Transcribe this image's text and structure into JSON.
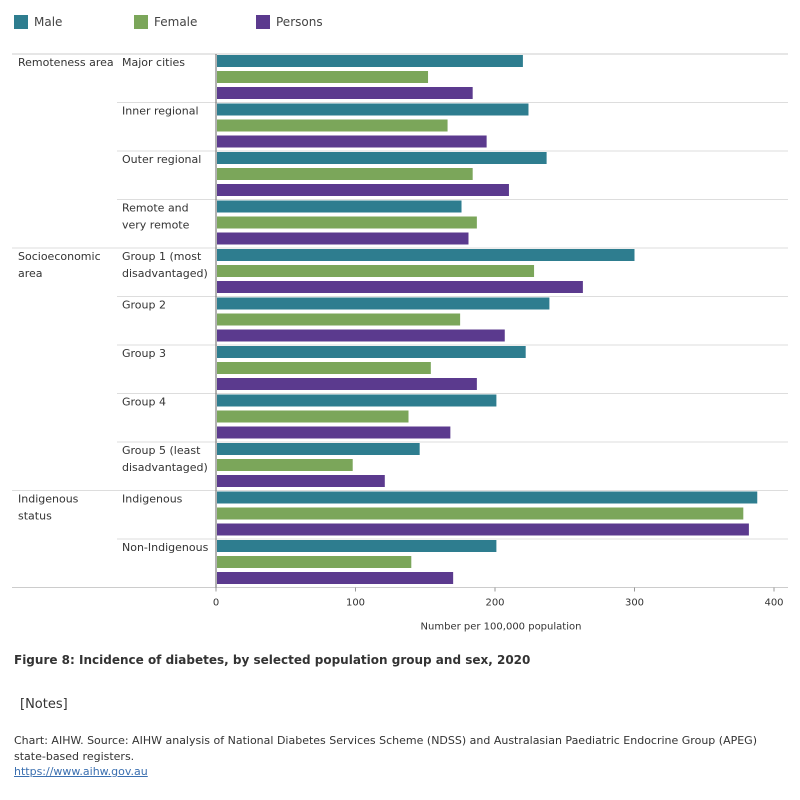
{
  "legend": {
    "male": "Male",
    "female": "Female",
    "persons": "Persons"
  },
  "colors": {
    "male": "#2e7d8f",
    "female": "#7ba65a",
    "persons": "#5b3a8e"
  },
  "chart_data": {
    "type": "bar",
    "orientation": "horizontal",
    "title": "Figure 8: Incidence of diabetes, by selected population group and sex, 2020",
    "xlabel": "Number per 100,000 population",
    "ylabel": "",
    "xlim": [
      0,
      400
    ],
    "x_ticks": [
      0,
      100,
      200,
      300,
      400
    ],
    "series_names": [
      "Male",
      "Female",
      "Persons"
    ],
    "groups": [
      {
        "label_lines": [
          "Remoteness area"
        ],
        "categories": [
          {
            "label_lines": [
              "Major cities"
            ],
            "values": [
              220,
              152,
              184
            ]
          },
          {
            "label_lines": [
              "Inner regional"
            ],
            "values": [
              224,
              166,
              194
            ]
          },
          {
            "label_lines": [
              "Outer regional"
            ],
            "values": [
              237,
              184,
              210
            ]
          },
          {
            "label_lines": [
              "Remote and",
              "very remote"
            ],
            "values": [
              176,
              187,
              181
            ]
          }
        ]
      },
      {
        "label_lines": [
          "Socioeconomic",
          "area"
        ],
        "categories": [
          {
            "label_lines": [
              "Group 1 (most",
              "disadvantaged)"
            ],
            "values": [
              300,
              228,
              263
            ]
          },
          {
            "label_lines": [
              "Group 2"
            ],
            "values": [
              239,
              175,
              207
            ]
          },
          {
            "label_lines": [
              "Group 3"
            ],
            "values": [
              222,
              154,
              187
            ]
          },
          {
            "label_lines": [
              "Group 4"
            ],
            "values": [
              201,
              138,
              168
            ]
          },
          {
            "label_lines": [
              "Group 5 (least",
              "disadvantaged)"
            ],
            "values": [
              146,
              98,
              121
            ]
          }
        ]
      },
      {
        "label_lines": [
          "Indigenous",
          "status"
        ],
        "categories": [
          {
            "label_lines": [
              "Indigenous"
            ],
            "values": [
              388,
              378,
              382
            ]
          },
          {
            "label_lines": [
              "Non-Indigenous"
            ],
            "values": [
              201,
              140,
              170
            ]
          }
        ]
      }
    ]
  },
  "footer": {
    "notes": "[Notes]",
    "source": "Chart: AIHW.  Source: AIHW analysis of National Diabetes Services Scheme (NDSS) and Australasian Paediatric Endocrine Group (APEG) state-based registers.",
    "link": "https://www.aihw.gov.au"
  }
}
